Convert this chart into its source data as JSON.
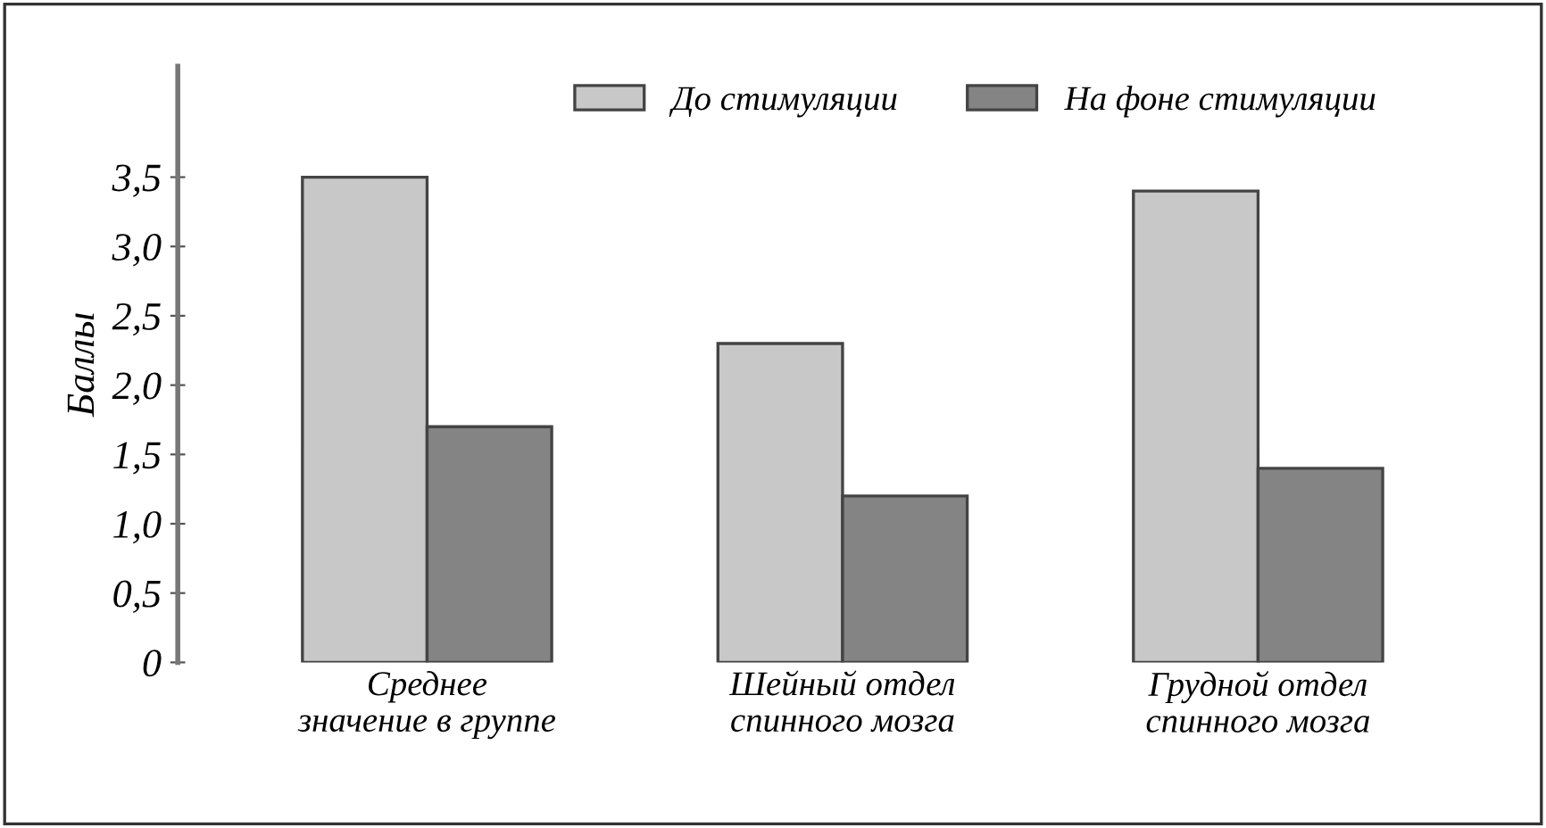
{
  "chart_data": {
    "type": "bar",
    "ylabel": "Баллы",
    "categories": [
      "Среднее\nзначение в группе",
      "Шейный отдел\nспинного мозга",
      "Грудной отдел\nспинного мозга"
    ],
    "series": [
      {
        "name": "До стимуляции",
        "color": "#c8c8c8",
        "values": [
          3.5,
          2.3,
          3.4
        ]
      },
      {
        "name": "На фоне стимуляции",
        "color": "#848484",
        "values": [
          1.7,
          1.2,
          1.4
        ]
      }
    ],
    "ylim": [
      0,
      4.3
    ],
    "yticks": [
      0,
      {
        "value": 0.5,
        "label": "0,5"
      },
      {
        "value": 1.0,
        "label": "1,0"
      },
      {
        "value": 1.5,
        "label": "1,5"
      },
      {
        "value": 2.0,
        "label": "2,0"
      },
      {
        "value": 2.5,
        "label": "2,5"
      },
      {
        "value": 3.0,
        "label": "3,0"
      },
      {
        "value": 3.5,
        "label": "3,5"
      }
    ],
    "grid": false,
    "legend": "top"
  }
}
